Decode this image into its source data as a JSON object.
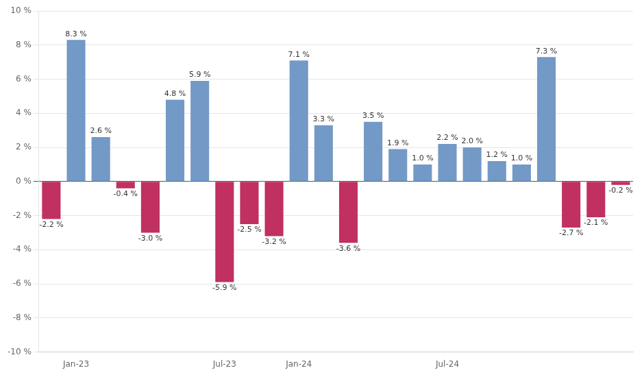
{
  "chart_data": {
    "type": "bar",
    "categories": [
      null,
      "Jan-23",
      null,
      null,
      null,
      null,
      null,
      "Jul-23",
      null,
      null,
      "Jan-24",
      null,
      null,
      null,
      null,
      null,
      "Jul-24",
      null,
      null,
      null,
      null,
      null,
      null,
      null
    ],
    "values": [
      -2.2,
      8.3,
      2.6,
      -0.4,
      -3.0,
      4.8,
      5.9,
      -5.9,
      -2.5,
      -3.2,
      7.1,
      3.3,
      -3.6,
      3.5,
      1.9,
      1.0,
      2.2,
      2.0,
      1.2,
      1.0,
      7.3,
      -2.7,
      -2.1,
      -0.2
    ],
    "value_labels": [
      "-2.2 %",
      "8.3 %",
      "2.6 %",
      "-0.4 %",
      "-3.0 %",
      "4.8 %",
      "5.9 %",
      "-5.9 %",
      "-2.5 %",
      "-3.2 %",
      "7.1 %",
      "3.3 %",
      "-3.6 %",
      "3.5 %",
      "1.9 %",
      "1.0 %",
      "2.2 %",
      "2.0 %",
      "1.2 %",
      "1.0 %",
      "7.3 %",
      "-2.7 %",
      "-2.1 %",
      "-0.2 %"
    ],
    "colors": [
      "#C03060",
      "#7399C6",
      "#7399C6",
      "#C03060",
      "#C03060",
      "#7399C6",
      "#7399C6",
      "#C03060",
      "#C03060",
      "#C03060",
      "#7399C6",
      "#7399C6",
      "#C03060",
      "#7399C6",
      "#7399C6",
      "#7399C6",
      "#7399C6",
      "#7399C6",
      "#7399C6",
      "#7399C6",
      "#7399C6",
      "#C03060",
      "#C03060",
      "#C03060"
    ],
    "data_labels": true,
    "ylim": [
      -10,
      10
    ],
    "yticks": [
      {
        "value": -10,
        "label": "-10 %"
      },
      {
        "value": -8,
        "label": "-8 %"
      },
      {
        "value": -6,
        "label": "-6 %"
      },
      {
        "value": -4,
        "label": "-4 %"
      },
      {
        "value": -2,
        "label": "-2 %"
      },
      {
        "value": 0,
        "label": "0 %"
      },
      {
        "value": 2,
        "label": "2 %"
      },
      {
        "value": 4,
        "label": "4 %"
      },
      {
        "value": 6,
        "label": "6 %"
      },
      {
        "value": 8,
        "label": "8 %"
      },
      {
        "value": 10,
        "label": "10 %"
      }
    ],
    "grid": true
  }
}
